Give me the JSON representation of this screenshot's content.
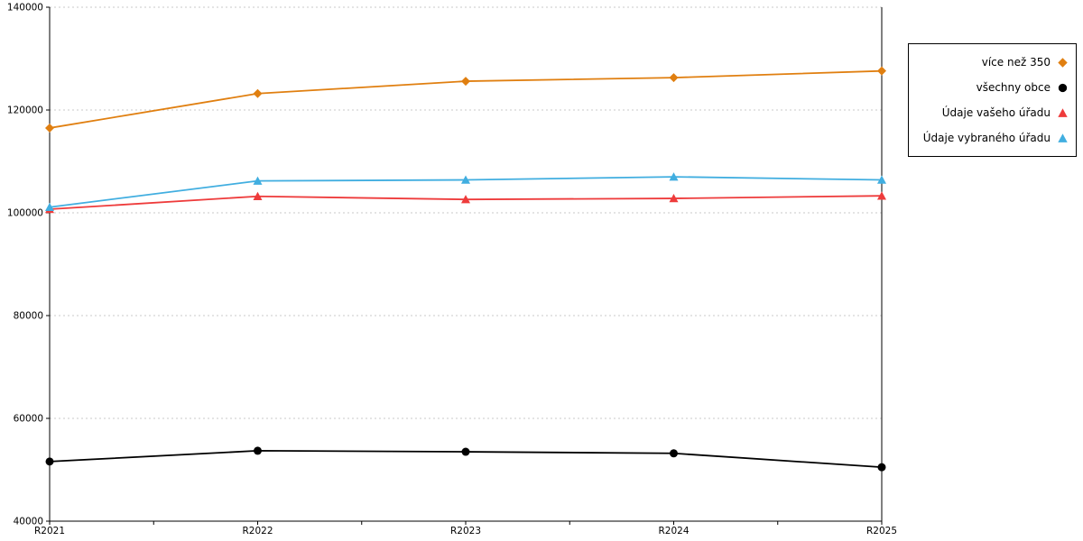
{
  "chart_data": {
    "type": "line",
    "x": [
      "R2021",
      "R2022",
      "R2023",
      "R2024",
      "R2025"
    ],
    "series": [
      {
        "name": "více než 350",
        "color": "#e07f10",
        "marker": "diamond",
        "values": [
          116500,
          123200,
          125600,
          126300,
          127600
        ]
      },
      {
        "name": "všechny obce",
        "color": "#000000",
        "marker": "circle",
        "values": [
          51600,
          53700,
          53500,
          53200,
          50500
        ]
      },
      {
        "name": "Údaje vašeho úřadu",
        "color": "#ee3b3b",
        "marker": "triangle",
        "values": [
          100700,
          103200,
          102600,
          102800,
          103300
        ]
      },
      {
        "name": "Údaje vybraného úřadu",
        "color": "#41aee0",
        "marker": "triangle",
        "values": [
          101100,
          106200,
          106400,
          107000,
          106400
        ]
      }
    ],
    "ylim": [
      40000,
      140000
    ],
    "yticks": [
      40000,
      60000,
      80000,
      100000,
      120000,
      140000
    ],
    "grid": true,
    "gridline_color": "#c8c8c8",
    "axis_color": "#000000",
    "legend_position": "top-right-outside",
    "title": "",
    "xlabel": "",
    "ylabel": ""
  }
}
